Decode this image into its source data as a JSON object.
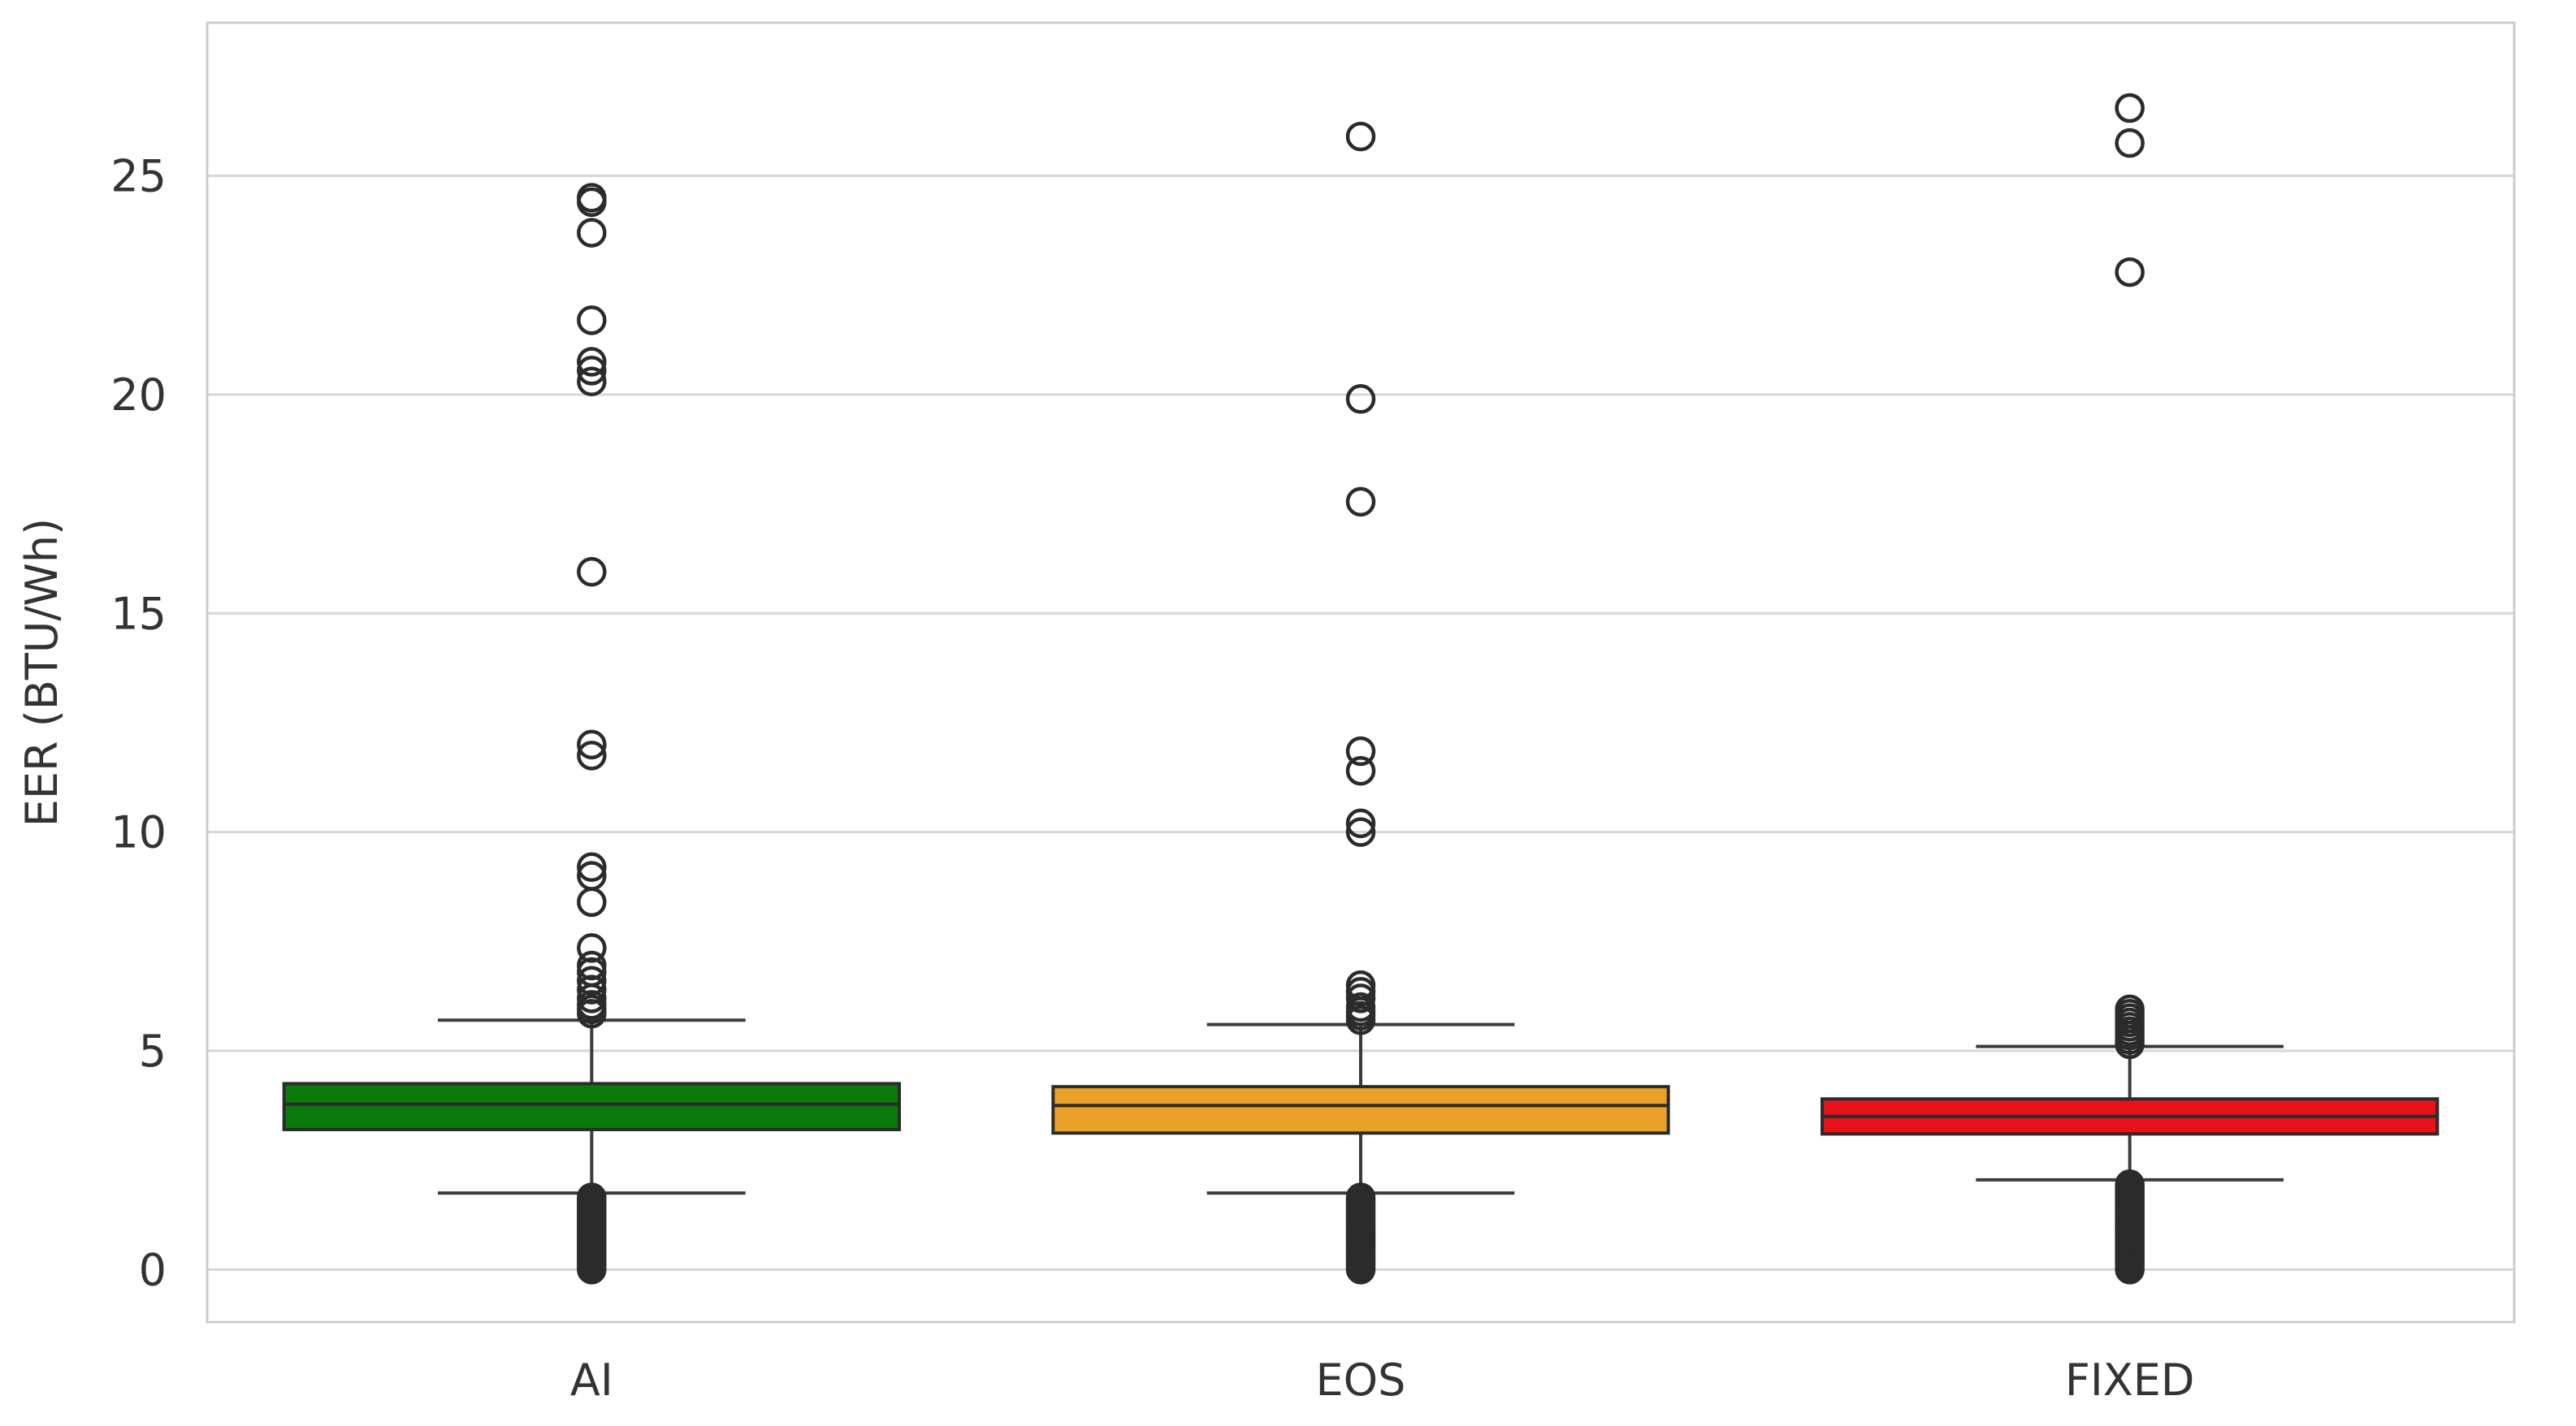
{
  "chart_data": {
    "type": "box",
    "title": "",
    "xlabel": "",
    "ylabel": "EER (BTU/Wh)",
    "ylim": [
      -1.2,
      28.5
    ],
    "yticks": [
      0,
      5,
      10,
      15,
      20,
      25
    ],
    "grid": true,
    "categories": [
      "AI",
      "EOS",
      "FIXED"
    ],
    "boxes": [
      {
        "category": "AI",
        "color": "#0a7a0a",
        "whisker_low": 1.75,
        "q1": 3.2,
        "median": 3.78,
        "q3": 4.25,
        "whisker_high": 5.7,
        "outliers_high": [
          5.85,
          5.95,
          6.05,
          6.2,
          6.4,
          6.6,
          6.8,
          6.95,
          7.35,
          8.4,
          9.0,
          9.2,
          11.75,
          12.0,
          15.95,
          20.3,
          20.55,
          20.75,
          21.7,
          23.7,
          24.4,
          24.5
        ],
        "outliers_low": [
          0.0,
          0.05,
          0.1,
          0.15,
          0.2,
          0.25,
          0.3,
          0.35,
          0.4,
          0.45,
          0.5,
          0.55,
          0.6,
          0.65,
          0.7,
          0.75,
          0.8,
          0.85,
          0.9,
          0.95,
          1.0,
          1.05,
          1.1,
          1.15,
          1.2,
          1.25,
          1.3,
          1.35,
          1.4,
          1.45,
          1.5,
          1.55,
          1.6,
          1.65
        ]
      },
      {
        "category": "EOS",
        "color": "#e9a227",
        "whisker_low": 1.75,
        "q1": 3.12,
        "median": 3.75,
        "q3": 4.18,
        "whisker_high": 5.6,
        "outliers_high": [
          5.7,
          5.8,
          5.9,
          6.0,
          6.2,
          6.35,
          6.5,
          10.0,
          10.2,
          11.4,
          11.85,
          17.55,
          19.9,
          25.9
        ],
        "outliers_low": [
          0.0,
          0.05,
          0.1,
          0.15,
          0.2,
          0.25,
          0.3,
          0.35,
          0.4,
          0.45,
          0.5,
          0.55,
          0.6,
          0.65,
          0.7,
          0.75,
          0.8,
          0.85,
          0.9,
          0.95,
          1.0,
          1.05,
          1.1,
          1.15,
          1.2,
          1.25,
          1.3,
          1.35,
          1.4,
          1.45,
          1.5,
          1.55,
          1.6,
          1.65
        ]
      },
      {
        "category": "FIXED",
        "color": "#e8121a",
        "whisker_low": 2.05,
        "q1": 3.1,
        "median": 3.5,
        "q3": 3.9,
        "whisker_high": 5.1,
        "outliers_high": [
          5.15,
          5.25,
          5.35,
          5.45,
          5.55,
          5.65,
          5.75,
          5.85,
          5.95,
          22.8,
          25.75,
          26.55
        ],
        "outliers_low": [
          0.0,
          0.05,
          0.1,
          0.15,
          0.2,
          0.25,
          0.3,
          0.35,
          0.4,
          0.45,
          0.5,
          0.55,
          0.6,
          0.65,
          0.7,
          0.75,
          0.8,
          0.85,
          0.9,
          0.95,
          1.0,
          1.05,
          1.1,
          1.15,
          1.2,
          1.25,
          1.3,
          1.35,
          1.4,
          1.45,
          1.5,
          1.55,
          1.6,
          1.65,
          1.7,
          1.75,
          1.8,
          1.85,
          1.9,
          1.95
        ]
      }
    ]
  }
}
